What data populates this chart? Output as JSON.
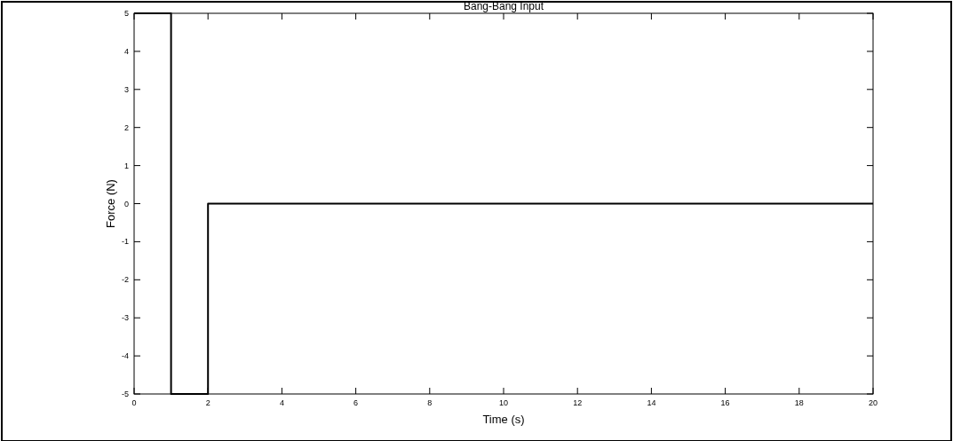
{
  "chart_data": {
    "type": "step",
    "title": "Bang-Bang Input",
    "xlabel": "Time (s)",
    "ylabel": "Force (N)",
    "x": [
      0,
      1,
      2,
      20
    ],
    "series": [
      {
        "color": "#000000",
        "values": [
          5,
          -5,
          0,
          0
        ]
      }
    ],
    "xlim": [
      0,
      20
    ],
    "xticks": [
      0,
      2,
      4,
      6,
      8,
      10,
      12,
      14,
      16,
      18,
      20
    ],
    "ylim": [
      -5,
      5
    ],
    "yticks": [
      -5,
      -4,
      -3,
      -2,
      -1,
      0,
      1,
      2,
      3,
      4,
      5
    ],
    "grid": false,
    "line_style": "solid"
  }
}
